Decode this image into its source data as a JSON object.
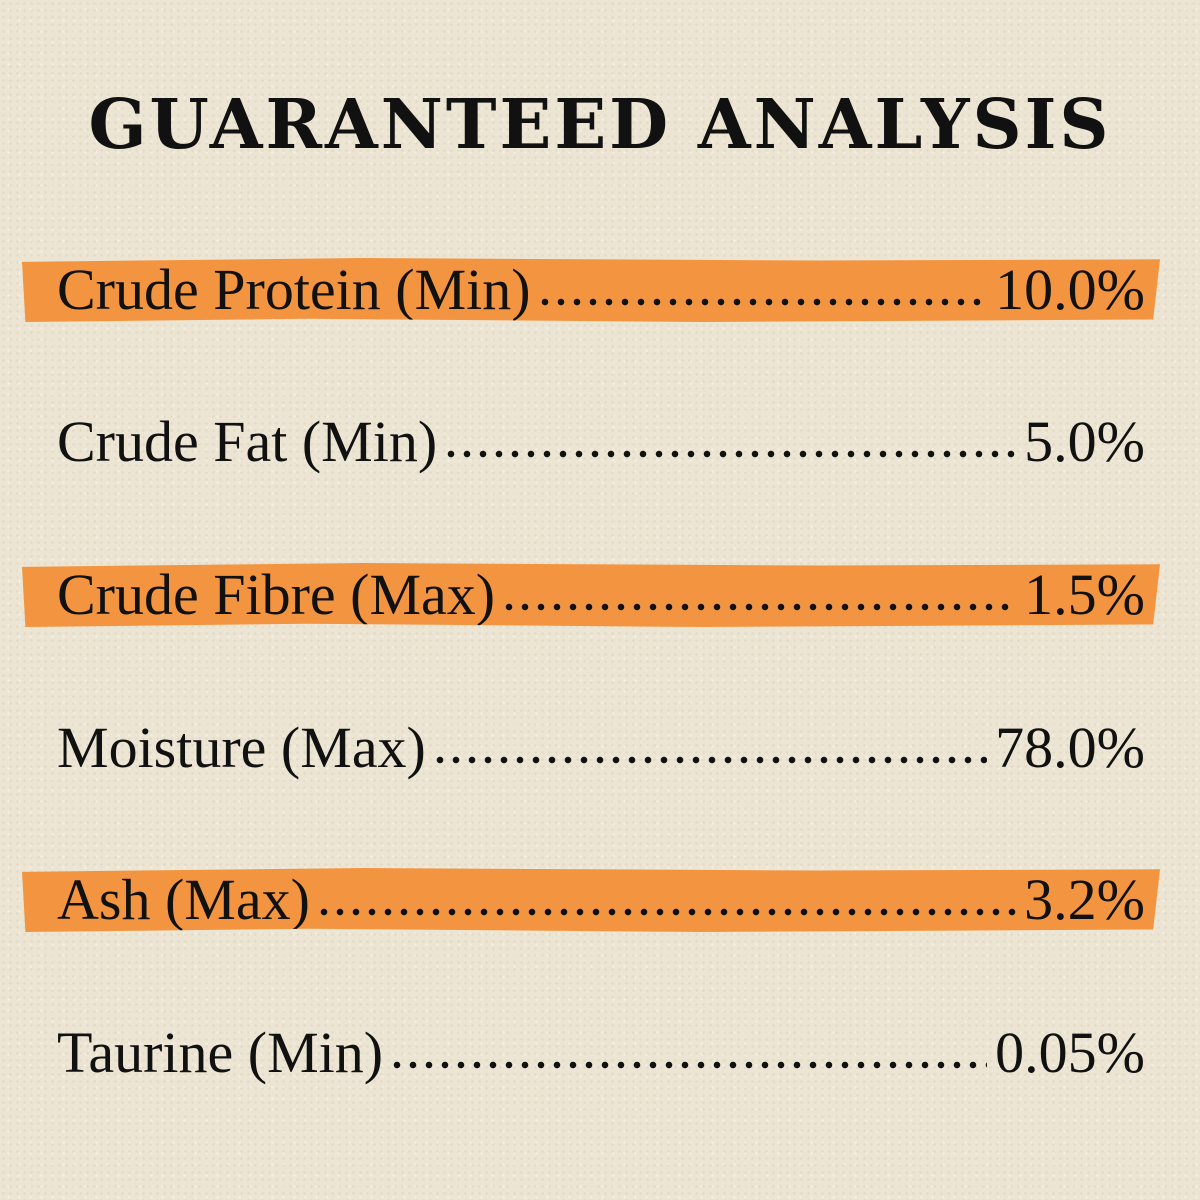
{
  "header": {
    "title": "GUARANTEED ANALYSIS"
  },
  "table": {
    "rows": [
      [
        "Crude Protein (Min)",
        "10.0%"
      ],
      [
        "Crude Fat (Min)",
        "5.0%"
      ],
      [
        "Crude Fibre (Max)",
        "1.5%"
      ],
      [
        "Moisture (Max)",
        "78.0%"
      ],
      [
        "Ash (Max)",
        "3.2%"
      ],
      [
        "Taurine (Min)",
        "0.05%"
      ]
    ]
  }
}
